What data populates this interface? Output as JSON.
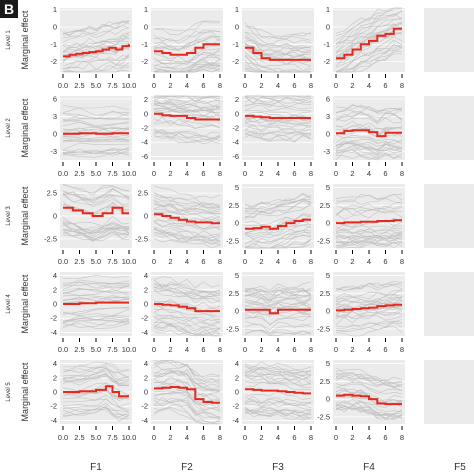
{
  "figure": {
    "panel_letter": "B",
    "y_label": "Marginal effect"
  },
  "colors": {
    "trace": "#bdbdbd",
    "mean": "#e8281e",
    "panel_bg": "#ebebeb",
    "grid": "#ffffff",
    "text": "#333333"
  },
  "chart_data": {
    "type": "line",
    "grid": true,
    "description_rows": [
      "Level 1",
      "Level 2",
      "Level 3",
      "Level 4",
      "Level 5"
    ],
    "features": [
      "F1",
      "F2",
      "F3",
      "F4",
      "F5"
    ],
    "x_ranges": {
      "F1": [
        0,
        10
      ],
      "F2": [
        0,
        8
      ],
      "F3": [
        0,
        8
      ],
      "F4": [
        0,
        8
      ]
    },
    "x_ticks": {
      "F1": [
        "0.0",
        "2.5",
        "5.0",
        "7.5",
        "10.0"
      ],
      "F2": [
        "0",
        "2",
        "4",
        "6",
        "8"
      ],
      "F3": [
        "0",
        "2",
        "4",
        "6",
        "8"
      ],
      "F4": [
        "0",
        "2",
        "4",
        "6",
        "8"
      ]
    },
    "x_ticks_level3_F1": [
      "0.0",
      "2.5",
      "5.0",
      "7.5",
      "10.0"
    ],
    "panels": [
      {
        "level": "Level 1",
        "feature": "F1",
        "ylim": [
          -2.6,
          1.1
        ],
        "yticks": [
          -2,
          -1,
          0,
          1
        ],
        "mean_x": [
          0,
          1,
          2,
          3,
          4,
          5,
          6,
          7,
          8,
          9,
          10
        ],
        "mean_y": [
          -1.7,
          -1.6,
          -1.55,
          -1.5,
          -1.45,
          -1.4,
          -1.3,
          -1.2,
          -1.3,
          -1.1,
          -1.0
        ]
      },
      {
        "level": "Level 1",
        "feature": "F2",
        "ylim": [
          -2.6,
          1.1
        ],
        "yticks": [
          -2,
          -1,
          0,
          1
        ],
        "mean_x": [
          0,
          1,
          2,
          3,
          4,
          5,
          6,
          7,
          8
        ],
        "mean_y": [
          -1.4,
          -1.5,
          -1.6,
          -1.6,
          -1.5,
          -1.2,
          -1.0,
          -1.0,
          -1.0
        ]
      },
      {
        "level": "Level 1",
        "feature": "F3",
        "ylim": [
          -2.6,
          1.1
        ],
        "yticks": [
          -2,
          -1,
          0,
          1
        ],
        "mean_x": [
          0,
          1,
          2,
          3,
          4,
          5,
          6,
          7,
          8
        ],
        "mean_y": [
          -1.2,
          -1.5,
          -1.8,
          -1.9,
          -1.9,
          -1.9,
          -1.9,
          -1.9,
          -1.9
        ]
      },
      {
        "level": "Level 1",
        "feature": "F4",
        "ylim": [
          -2.6,
          1.1
        ],
        "yticks": [
          -2,
          -1,
          0,
          1
        ],
        "mean_x": [
          0,
          1,
          2,
          3,
          4,
          5,
          6,
          7,
          8
        ],
        "mean_y": [
          -1.8,
          -1.6,
          -1.3,
          -1.0,
          -0.8,
          -0.5,
          -0.4,
          -0.1,
          -0.1
        ]
      },
      {
        "level": "Level 2",
        "feature": "F1",
        "ylim": [
          -4.5,
          6.5
        ],
        "yticks": [
          -3,
          0,
          3,
          6
        ],
        "mean_x": [
          0,
          2.5,
          5,
          7.5,
          10
        ],
        "mean_y": [
          0.0,
          0.1,
          0.0,
          0.1,
          0.1
        ]
      },
      {
        "level": "Level 2",
        "feature": "F2",
        "ylim": [
          -6.5,
          2.5
        ],
        "yticks": [
          -6,
          -4,
          -2,
          0,
          2
        ],
        "mean_x": [
          0,
          1,
          2,
          3,
          4,
          5,
          6,
          7,
          8
        ],
        "mean_y": [
          0.0,
          -0.2,
          -0.3,
          -0.3,
          -0.6,
          -0.8,
          -0.8,
          -0.8,
          -0.8
        ]
      },
      {
        "level": "Level 2",
        "feature": "F3",
        "ylim": [
          -6.5,
          2.5
        ],
        "yticks": [
          -6,
          -4,
          -2,
          0,
          2
        ],
        "mean_x": [
          0,
          1,
          2,
          3,
          4,
          5,
          6,
          7,
          8
        ],
        "mean_y": [
          -0.3,
          -0.4,
          -0.5,
          -0.6,
          -0.6,
          -0.6,
          -0.6,
          -0.6,
          -0.6
        ]
      },
      {
        "level": "Level 2",
        "feature": "F4",
        "ylim": [
          -4.5,
          6.5
        ],
        "yticks": [
          -3,
          0,
          3,
          6
        ],
        "mean_x": [
          0,
          1,
          2,
          3,
          4,
          5,
          6,
          7,
          8
        ],
        "mean_y": [
          0.1,
          0.5,
          0.6,
          0.6,
          0.3,
          -0.4,
          0.2,
          0.2,
          0.2
        ]
      },
      {
        "level": "Level 3",
        "feature": "F1",
        "ylim": [
          -3.5,
          3.5
        ],
        "yticks": [
          -2.5,
          0.0,
          2.5
        ],
        "mean_x": [
          0,
          1.5,
          3,
          4.5,
          6,
          7.5,
          9,
          10
        ],
        "mean_y": [
          0.9,
          0.6,
          0.3,
          0.0,
          0.3,
          0.9,
          0.3,
          0.3
        ]
      },
      {
        "level": "Level 3",
        "feature": "F2",
        "ylim": [
          -3.5,
          3.5
        ],
        "yticks": [
          -2.5,
          0.0,
          2.5
        ],
        "mean_x": [
          0,
          1,
          2,
          3,
          4,
          5,
          6,
          7,
          8
        ],
        "mean_y": [
          0.2,
          0.0,
          -0.2,
          -0.4,
          -0.6,
          -0.7,
          -0.7,
          -0.8,
          -0.8
        ]
      },
      {
        "level": "Level 3",
        "feature": "F3",
        "ylim": [
          -3.5,
          5.5
        ],
        "yticks": [
          -2.5,
          0.0,
          2.5,
          5.0
        ],
        "mean_x": [
          0,
          1,
          2,
          3,
          4,
          5,
          6,
          7,
          8
        ],
        "mean_y": [
          -0.8,
          -0.7,
          -0.5,
          -0.8,
          -0.4,
          0.0,
          0.3,
          0.5,
          0.5
        ]
      },
      {
        "level": "Level 3",
        "feature": "F4",
        "ylim": [
          -3.5,
          5.5
        ],
        "yticks": [
          -2.5,
          0.0,
          2.5,
          5.0
        ],
        "mean_x": [
          0,
          1,
          2,
          3,
          4,
          5,
          6,
          7,
          8
        ],
        "mean_y": [
          0.0,
          0.1,
          0.1,
          0.2,
          0.2,
          0.3,
          0.3,
          0.4,
          0.4
        ]
      },
      {
        "level": "Level 4",
        "feature": "F1",
        "ylim": [
          -4.5,
          4.5
        ],
        "yticks": [
          -4,
          -2,
          0,
          2,
          4
        ],
        "mean_x": [
          0,
          2.5,
          5,
          7.5,
          10
        ],
        "mean_y": [
          0.0,
          0.1,
          0.2,
          0.2,
          0.2
        ]
      },
      {
        "level": "Level 4",
        "feature": "F2",
        "ylim": [
          -4.5,
          4.5
        ],
        "yticks": [
          -4,
          -2,
          0,
          2,
          4
        ],
        "mean_x": [
          0,
          1,
          2,
          3,
          4,
          5,
          6,
          7,
          8
        ],
        "mean_y": [
          0.0,
          -0.1,
          -0.2,
          -0.4,
          -0.6,
          -1.0,
          -1.0,
          -1.0,
          -1.0
        ]
      },
      {
        "level": "Level 4",
        "feature": "F3",
        "ylim": [
          -3.5,
          5.5
        ],
        "yticks": [
          -2.5,
          0.0,
          2.5,
          5.0
        ],
        "mean_x": [
          0,
          1,
          2,
          3,
          4,
          5,
          6,
          7,
          8
        ],
        "mean_y": [
          0.2,
          0.2,
          0.2,
          -0.3,
          0.2,
          0.2,
          0.2,
          0.2,
          0.2
        ]
      },
      {
        "level": "Level 4",
        "feature": "F4",
        "ylim": [
          -3.5,
          5.5
        ],
        "yticks": [
          -2.5,
          0.0,
          2.5,
          5.0
        ],
        "mean_x": [
          0,
          1,
          2,
          3,
          4,
          5,
          6,
          7,
          8
        ],
        "mean_y": [
          0.1,
          0.2,
          0.3,
          0.4,
          0.5,
          0.7,
          0.8,
          0.9,
          0.9
        ]
      },
      {
        "level": "Level 5",
        "feature": "F1",
        "ylim": [
          -4.5,
          4.5
        ],
        "yticks": [
          -4,
          -2,
          0,
          2,
          4
        ],
        "mean_x": [
          0,
          2.5,
          5,
          6.5,
          7.5,
          8.5,
          10
        ],
        "mean_y": [
          0.0,
          0.1,
          0.3,
          0.8,
          0.0,
          -0.6,
          -0.6
        ]
      },
      {
        "level": "Level 5",
        "feature": "F2",
        "ylim": [
          -4.5,
          4.5
        ],
        "yticks": [
          -4,
          -2,
          0,
          2,
          4
        ],
        "mean_x": [
          0,
          1,
          2,
          3,
          4,
          5,
          6,
          7,
          8
        ],
        "mean_y": [
          0.5,
          0.6,
          0.7,
          0.6,
          0.4,
          -1.0,
          -1.4,
          -1.5,
          -1.5
        ]
      },
      {
        "level": "Level 5",
        "feature": "F3",
        "ylim": [
          -4.5,
          4.5
        ],
        "yticks": [
          -4,
          -2,
          0,
          2,
          4
        ],
        "mean_x": [
          0,
          1,
          2,
          3,
          4,
          5,
          6,
          7,
          8
        ],
        "mean_y": [
          0.4,
          0.3,
          0.2,
          0.2,
          0.1,
          0.0,
          -0.1,
          -0.2,
          -0.2
        ]
      },
      {
        "level": "Level 5",
        "feature": "F4",
        "ylim": [
          -3.5,
          5.5
        ],
        "yticks": [
          -2.5,
          0.0,
          2.5,
          5.0
        ],
        "mean_x": [
          0,
          1,
          2,
          3,
          4,
          5,
          6,
          7,
          8
        ],
        "mean_y": [
          0.5,
          0.6,
          0.5,
          0.4,
          0.0,
          -0.6,
          -0.7,
          -0.7,
          -0.7
        ]
      }
    ]
  }
}
